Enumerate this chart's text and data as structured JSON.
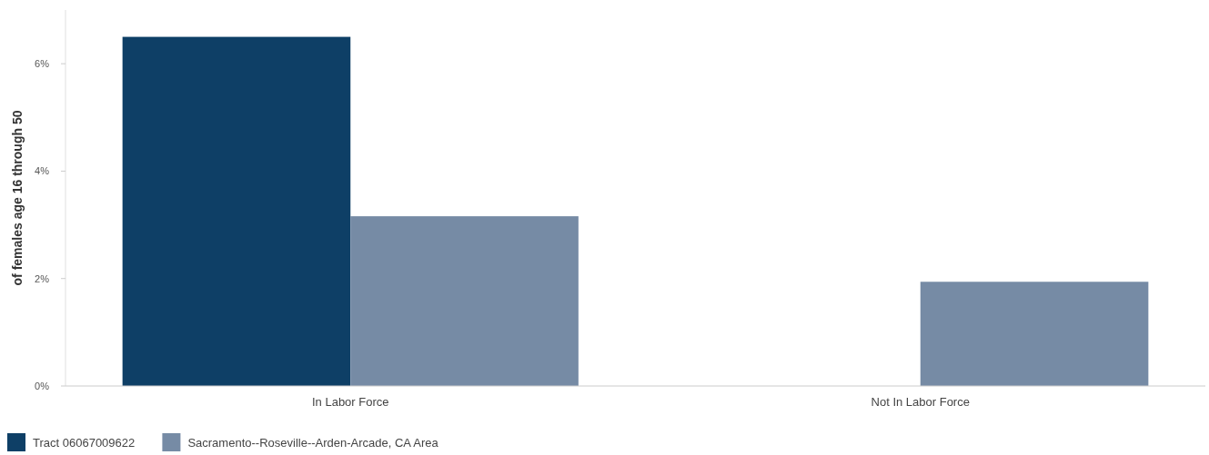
{
  "chart_data": {
    "type": "bar",
    "ylabel": "of females age 16 through 50",
    "categories": [
      "In Labor Force",
      "Not In Labor Force"
    ],
    "series": [
      {
        "name": "Tract 06067009622",
        "color": "#0e3f66",
        "values": [
          6.5,
          0
        ]
      },
      {
        "name": "Sacramento--Roseville--Arden-Arcade, CA Area",
        "color": "#768ba5",
        "values": [
          3.16,
          1.94
        ]
      }
    ],
    "ylim": [
      0,
      7
    ],
    "yticks": [
      {
        "value": 0,
        "label": "0%"
      },
      {
        "value": 2,
        "label": "2%"
      },
      {
        "value": 4,
        "label": "4%"
      },
      {
        "value": 6,
        "label": "6%"
      }
    ],
    "grid": false,
    "legend": "bottom left"
  }
}
